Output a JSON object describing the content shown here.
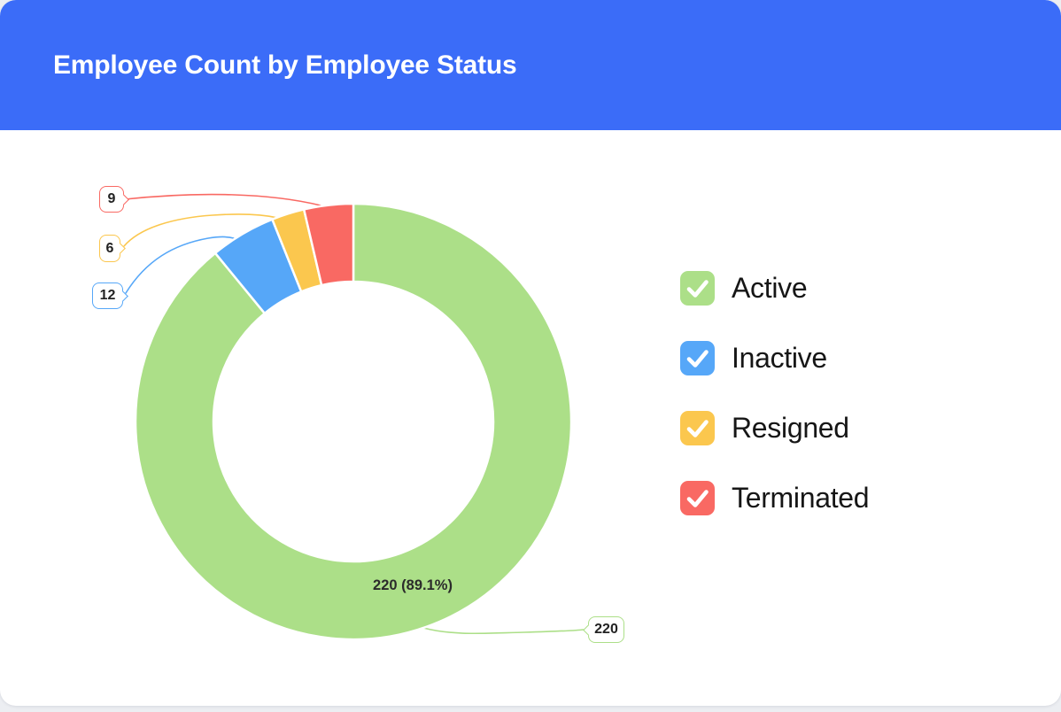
{
  "header": {
    "title": "Employee Count by Employee Status",
    "background_color": "#3B6CF8"
  },
  "chart_data": {
    "type": "pie",
    "subtype": "donut",
    "title": "Employee Count by Employee Status",
    "categories": [
      "Active",
      "Inactive",
      "Resigned",
      "Terminated"
    ],
    "values": [
      220,
      12,
      6,
      9
    ],
    "colors": [
      "#ACDF88",
      "#56A7F8",
      "#FBC74E",
      "#F96963"
    ],
    "start_angle_deg": 0,
    "direction": "clockwise",
    "legend_position": "right",
    "inner_label": "220 (89.1%)",
    "callouts": [
      {
        "label": "9",
        "series": "Terminated",
        "color": "#F96963"
      },
      {
        "label": "6",
        "series": "Resigned",
        "color": "#FBC74E"
      },
      {
        "label": "12",
        "series": "Inactive",
        "color": "#56A7F8"
      },
      {
        "label": "220",
        "series": "Active",
        "color": "#ACDF88"
      }
    ]
  },
  "legend": {
    "items": [
      {
        "label": "Active",
        "color": "#ACDF88"
      },
      {
        "label": "Inactive",
        "color": "#56A7F8"
      },
      {
        "label": "Resigned",
        "color": "#FBC74E"
      },
      {
        "label": "Terminated",
        "color": "#F96963"
      }
    ]
  }
}
